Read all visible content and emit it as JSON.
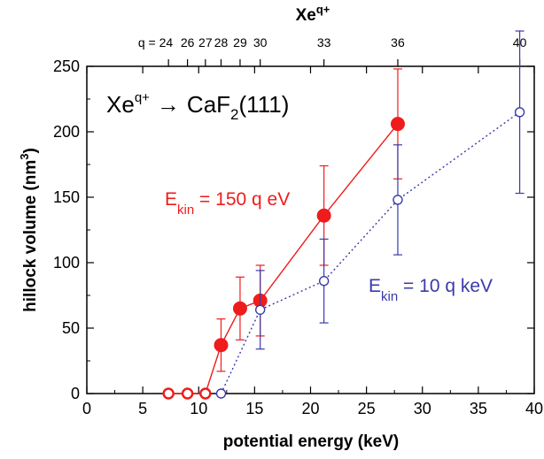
{
  "chart_data": {
    "type": "scatter",
    "reaction": {
      "lhs": "Xe",
      "lhs_sup": "q+",
      "arrow": "→",
      "rhs": "CaF",
      "rhs_sub": "2",
      "rhs_tail": "(111)"
    },
    "xlabel": "potential energy (keV)",
    "ylabel": {
      "main": "hillock volume (nm",
      "sup": "3",
      "close": ")"
    },
    "top_axis": {
      "label": "Xe",
      "label_sup": "q+",
      "ticks": [
        {
          "label": "q = 24",
          "x": 7.3
        },
        {
          "label": "26",
          "x": 9.0
        },
        {
          "label": "27",
          "x": 10.6
        },
        {
          "label": "28",
          "x": 12.0
        },
        {
          "label": "29",
          "x": 13.7
        },
        {
          "label": "30",
          "x": 15.5
        },
        {
          "label": "33",
          "x": 21.2
        },
        {
          "label": "36",
          "x": 27.8
        },
        {
          "label": "40",
          "x": 38.7
        }
      ]
    },
    "xlim": [
      0,
      40
    ],
    "ylim": [
      0,
      250
    ],
    "xticks": [
      "0",
      "5",
      "10",
      "15",
      "20",
      "25",
      "30",
      "35",
      "40"
    ],
    "yticks": [
      "0",
      "50",
      "100",
      "150",
      "200",
      "250"
    ],
    "series": [
      {
        "name_main": "E",
        "name_sub": "kin",
        "name_tail": " = 150 q eV",
        "color": "#ee1c1c",
        "line": "solid",
        "points": [
          {
            "x": 7.3,
            "y": 0,
            "err": 0,
            "open": true
          },
          {
            "x": 9.0,
            "y": 0,
            "err": 0,
            "open": true
          },
          {
            "x": 10.6,
            "y": 0,
            "err": 0,
            "open": true
          },
          {
            "x": 12.0,
            "y": 37,
            "err": 20,
            "open": false
          },
          {
            "x": 13.7,
            "y": 65,
            "err": 24,
            "open": false
          },
          {
            "x": 15.5,
            "y": 71,
            "err": 27,
            "open": false
          },
          {
            "x": 21.2,
            "y": 136,
            "err": 38,
            "open": false
          },
          {
            "x": 27.8,
            "y": 206,
            "err": 42,
            "open": false
          }
        ]
      },
      {
        "name_main": "E",
        "name_sub": "kin",
        "name_tail": " = 10 q keV",
        "color": "#3a3aaa",
        "line": "dotted",
        "points": [
          {
            "x": 12.0,
            "y": 0,
            "err": 0,
            "open": true
          },
          {
            "x": 15.5,
            "y": 64,
            "err": 30,
            "open": true
          },
          {
            "x": 21.2,
            "y": 86,
            "err": 32,
            "open": true
          },
          {
            "x": 27.8,
            "y": 148,
            "err": 42,
            "open": true
          },
          {
            "x": 38.7,
            "y": 215,
            "err": 62,
            "open": true
          }
        ]
      }
    ]
  }
}
